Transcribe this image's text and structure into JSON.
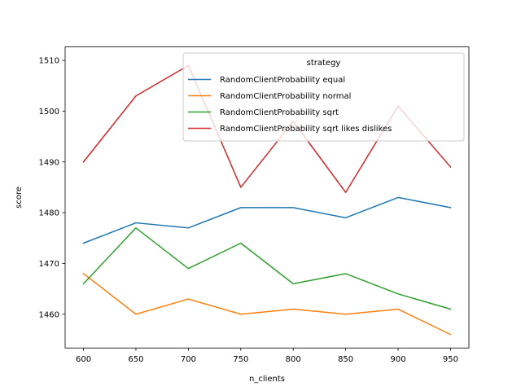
{
  "chart_data": {
    "type": "line",
    "title": "",
    "xlabel": "n_clients",
    "ylabel": "score",
    "x": [
      600,
      650,
      700,
      750,
      800,
      850,
      900,
      950
    ],
    "xlim": [
      582.5,
      967.5
    ],
    "ylim": [
      1453.35,
      1512.65
    ],
    "xticks": [
      600,
      650,
      700,
      750,
      800,
      850,
      900,
      950
    ],
    "yticks": [
      1460,
      1470,
      1480,
      1490,
      1500,
      1510
    ],
    "grid": false,
    "legend": {
      "title": "strategy",
      "placement": "top-right"
    },
    "series": [
      {
        "name": "RandomClientProbability equal",
        "color": "#1f77b4",
        "values": [
          1474,
          1478,
          1477,
          1481,
          1481,
          1479,
          1483,
          1481
        ]
      },
      {
        "name": "RandomClientProbability normal",
        "color": "#ff7f0e",
        "values": [
          1468,
          1460,
          1463,
          1460,
          1461,
          1460,
          1461,
          1456
        ]
      },
      {
        "name": "RandomClientProbability sqrt",
        "color": "#2ca02c",
        "values": [
          1466,
          1477,
          1469,
          1474,
          1466,
          1468,
          1464,
          1461
        ]
      },
      {
        "name": "RandomClientProbability sqrt likes dislikes",
        "color": "#d62728",
        "values": [
          1490,
          1503,
          1509,
          1485,
          1498,
          1484,
          1501,
          1489
        ]
      }
    ]
  }
}
